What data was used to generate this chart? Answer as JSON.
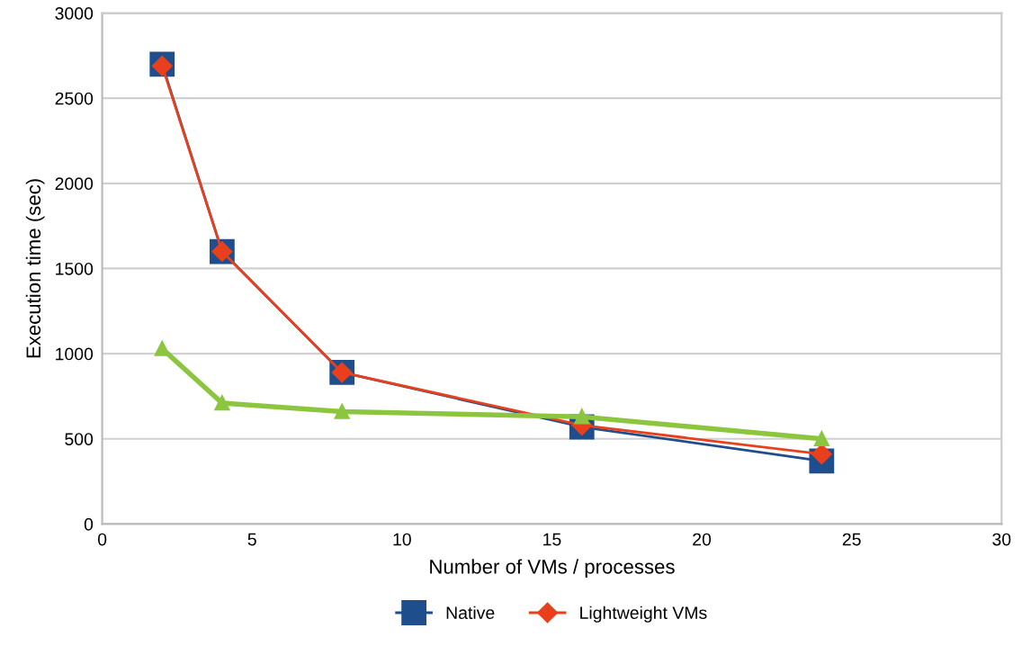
{
  "chart_data": {
    "type": "line",
    "xlabel": "Number of VMs / processes",
    "ylabel": "Execution time (sec)",
    "x": [
      2,
      4,
      8,
      16,
      24
    ],
    "series": [
      {
        "name": "Native",
        "color": "#1f4e8c",
        "marker": "square",
        "values": [
          2700,
          1600,
          890,
          570,
          370
        ]
      },
      {
        "name": "Lightweight VMs",
        "color": "#e8401c",
        "marker": "diamond",
        "values": [
          2690,
          1600,
          890,
          580,
          410
        ]
      },
      {
        "color": "#8cc63f",
        "marker": "triangle",
        "values": [
          1030,
          710,
          660,
          630,
          500
        ]
      }
    ],
    "xlim": [
      0,
      30
    ],
    "xticks": [
      0,
      5,
      10,
      15,
      20,
      25,
      30
    ],
    "ylim": [
      0,
      3000
    ],
    "yticks": [
      0,
      500,
      1000,
      1500,
      2000,
      2500,
      3000
    ],
    "grid": "y",
    "legend": "bottom"
  }
}
